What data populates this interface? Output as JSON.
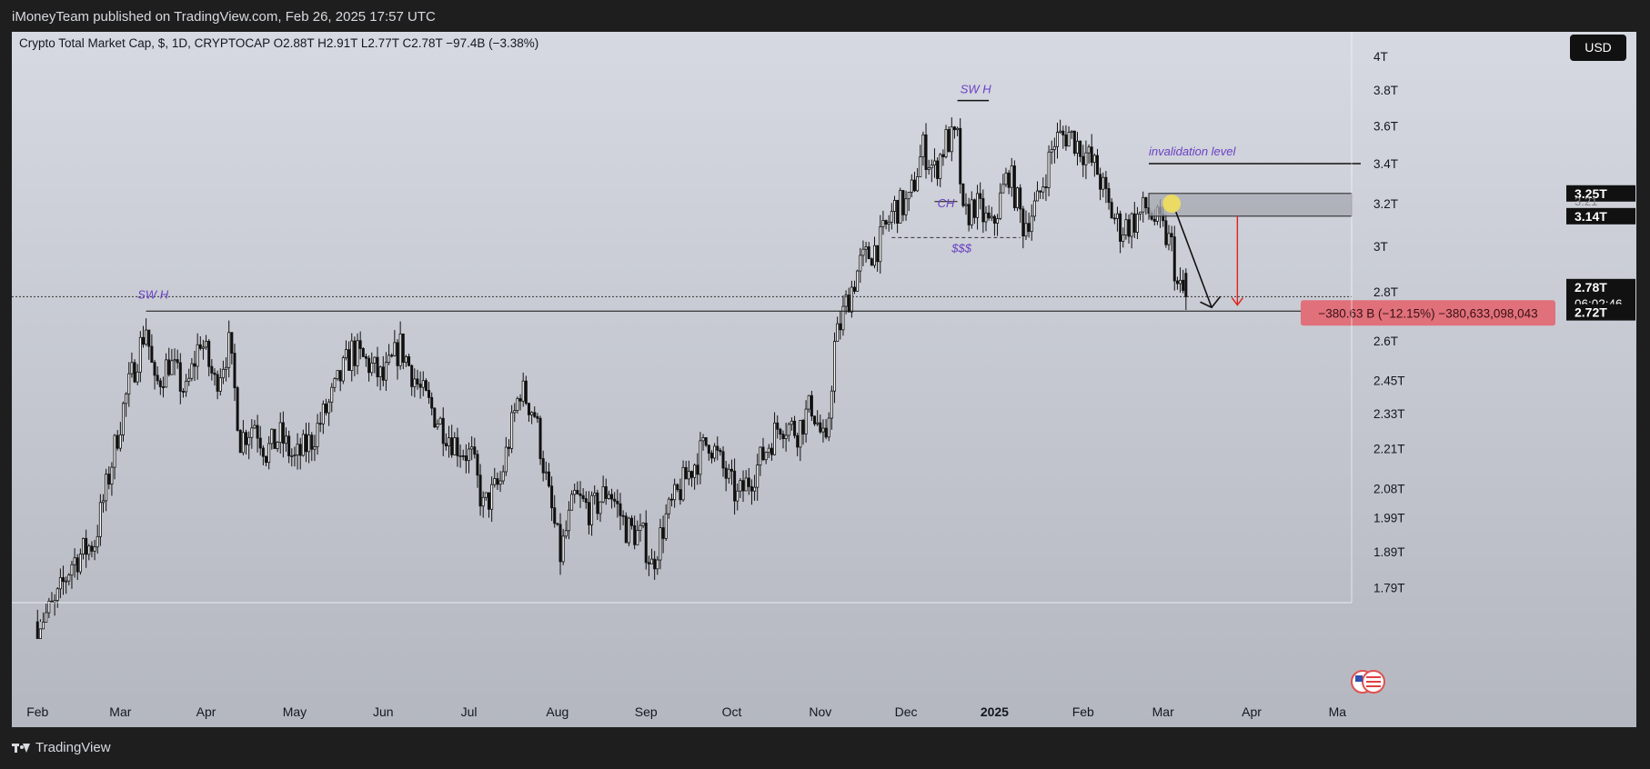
{
  "header": {
    "published_text": "iMoneyTeam published on TradingView.com, Feb 26, 2025 17:57 UTC"
  },
  "footer": {
    "brand": "TradingView",
    "logo_icon": "tradingview-logo-icon"
  },
  "legend": {
    "text": "Crypto Total Market Cap, $, 1D, CRYPTOCAP  O2.88T  H2.91T  L2.77T  C2.78T  −97.4B (−3.38%)"
  },
  "currency_button": "USD",
  "colors": {
    "bg_top": "#d6d9e1",
    "bg_bottom": "#b4b7bf",
    "candle": "#111111",
    "annotation": "#6a3fc4",
    "zone": "#a5a8b0",
    "measure_bg": "#e0707a",
    "measure_text": "#3a1015",
    "projection_red": "#e02020",
    "label_dark": "#111111"
  },
  "chart_data": {
    "type": "candlestick",
    "title": "Crypto Total Market Cap",
    "ohlc": {
      "open": "2.88T",
      "high": "2.91T",
      "low": "2.77T",
      "close": "2.78T",
      "change": "−97.4B (−3.38%)"
    },
    "y_scale": "log",
    "y_ticks": [
      "4T",
      "3.8T",
      "3.6T",
      "3.4T",
      "3.2T",
      "3T",
      "2.8T",
      "2.6T",
      "2.45T",
      "2.33T",
      "2.21T",
      "2.08T",
      "1.99T",
      "1.89T",
      "1.79T"
    ],
    "y_tick_values": [
      4.0,
      3.8,
      3.6,
      3.4,
      3.2,
      3.0,
      2.8,
      2.6,
      2.45,
      2.33,
      2.21,
      2.08,
      1.99,
      1.89,
      1.79
    ],
    "x_ticks": [
      "Feb",
      "Mar",
      "Apr",
      "May",
      "Jun",
      "Jul",
      "Aug",
      "Sep",
      "Oct",
      "Nov",
      "Dec",
      "2025",
      "Feb",
      "Mar",
      "Apr",
      "Ma"
    ],
    "x_tick_days": [
      0,
      29,
      59,
      90,
      121,
      151,
      182,
      213,
      243,
      274,
      304,
      335,
      366,
      394,
      425,
      455
    ],
    "day_range": [
      -9,
      460
    ],
    "ylim": [
      1.75,
      4.15
    ],
    "anchors": [
      [
        0,
        1.7
      ],
      [
        6,
        1.74
      ],
      [
        12,
        1.86
      ],
      [
        20,
        1.92
      ],
      [
        25,
        2.12
      ],
      [
        30,
        2.35
      ],
      [
        38,
        2.66
      ],
      [
        41,
        2.42
      ],
      [
        46,
        2.52
      ],
      [
        52,
        2.4
      ],
      [
        57,
        2.61
      ],
      [
        62,
        2.44
      ],
      [
        67,
        2.58
      ],
      [
        71,
        2.24
      ],
      [
        76,
        2.3
      ],
      [
        80,
        2.2
      ],
      [
        85,
        2.25
      ],
      [
        90,
        2.17
      ],
      [
        96,
        2.24
      ],
      [
        102,
        2.36
      ],
      [
        110,
        2.56
      ],
      [
        116,
        2.51
      ],
      [
        121,
        2.45
      ],
      [
        127,
        2.58
      ],
      [
        134,
        2.41
      ],
      [
        140,
        2.31
      ],
      [
        146,
        2.23
      ],
      [
        152,
        2.18
      ],
      [
        156,
        2.02
      ],
      [
        162,
        2.1
      ],
      [
        169,
        2.42
      ],
      [
        174,
        2.33
      ],
      [
        179,
        2.05
      ],
      [
        183,
        1.88
      ],
      [
        188,
        2.05
      ],
      [
        194,
        2.01
      ],
      [
        200,
        2.08
      ],
      [
        206,
        1.96
      ],
      [
        212,
        1.93
      ],
      [
        215,
        1.85
      ],
      [
        220,
        1.99
      ],
      [
        228,
        2.13
      ],
      [
        235,
        2.24
      ],
      [
        240,
        2.14
      ],
      [
        245,
        2.05
      ],
      [
        252,
        2.15
      ],
      [
        260,
        2.3
      ],
      [
        266,
        2.27
      ],
      [
        271,
        2.36
      ],
      [
        276,
        2.2
      ],
      [
        279,
        2.58
      ],
      [
        283,
        2.75
      ],
      [
        288,
        2.92
      ],
      [
        295,
        3.02
      ],
      [
        300,
        3.18
      ],
      [
        305,
        3.2
      ],
      [
        310,
        3.48
      ],
      [
        314,
        3.36
      ],
      [
        318,
        3.52
      ],
      [
        322,
        3.52
      ],
      [
        324,
        3.12
      ],
      [
        328,
        3.2
      ],
      [
        334,
        3.08
      ],
      [
        340,
        3.36
      ],
      [
        345,
        3.1
      ],
      [
        350,
        3.2
      ],
      [
        356,
        3.52
      ],
      [
        361,
        3.56
      ],
      [
        366,
        3.47
      ],
      [
        371,
        3.36
      ],
      [
        375,
        3.18
      ],
      [
        379,
        3.08
      ],
      [
        384,
        3.12
      ],
      [
        388,
        3.18
      ],
      [
        393,
        3.09
      ],
      [
        397,
        3.0
      ],
      [
        399,
        2.82
      ],
      [
        402,
        2.78
      ]
    ],
    "annotations": {
      "swh_mar": "SW H",
      "swh_dec": "SW H",
      "choch": "CH",
      "liquidity": "$$$",
      "invalidation": "invalidation level",
      "measure": "−380.63 B (−12.15%) −380,633,098,043"
    },
    "price_labels": {
      "zone_top": "3.25T",
      "zone_hidden": "3.21",
      "zone_bottom": "3.14T",
      "last_price": "2.78T",
      "countdown": "06:02:46",
      "target": "2.72T"
    },
    "levels": {
      "invalidation": 3.4,
      "zone_top": 3.25,
      "zone_bottom": 3.14,
      "last": 2.78,
      "target": 2.72,
      "swh_mar": 2.72,
      "swh_dec": 3.74,
      "liquidity": 3.04,
      "choch": 3.21
    }
  }
}
